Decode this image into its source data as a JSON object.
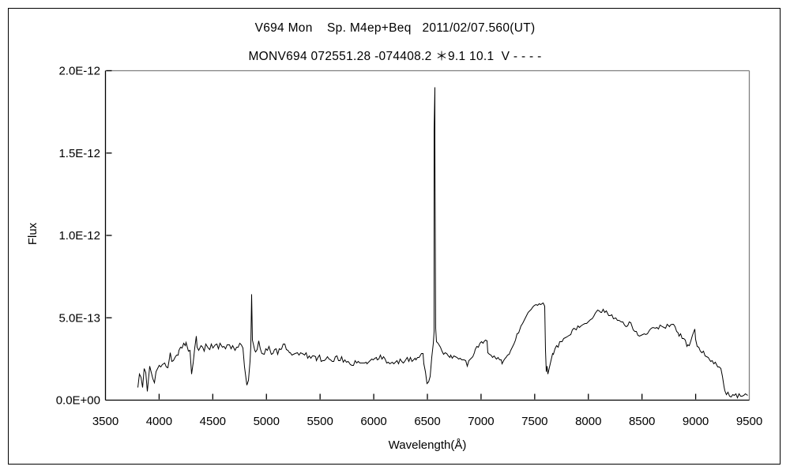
{
  "header": {
    "title_line1": "V694 Mon    Sp. M4ep+Beq   2011/02/07.560(UT)",
    "title_line2": "MONV694 072551.28 -074408.2 ＊9.1 10.1  V - - - -"
  },
  "colors": {
    "background": "#ffffff",
    "line": "#000000",
    "axis": "#000000",
    "frame_gray": "#808080",
    "text": "#000000"
  },
  "chart_data": {
    "type": "line",
    "title": "V694 Mon    Sp. M4ep+Beq   2011/02/07.560(UT)",
    "subtitle": "MONV694 072551.28 -074408.2 ＊9.1 10.1  V - - - -",
    "xlabel": "Wavelength(Å)",
    "ylabel": "Flux",
    "xlim": [
      3500,
      9500
    ],
    "ylim_flux": [
      0,
      2e-12
    ],
    "grid": false,
    "legend": "none",
    "x_ticks": [
      3500,
      4000,
      4500,
      5000,
      5500,
      6000,
      6500,
      7000,
      7500,
      8000,
      8500,
      9000,
      9500
    ],
    "x_tick_labels": [
      "3500",
      "4000",
      "4500",
      "5000",
      "5500",
      "6000",
      "6500",
      "7000",
      "7500",
      "8000",
      "8500",
      "9000",
      "9500"
    ],
    "y_tick_values_e13": [
      0,
      5,
      10,
      15,
      20
    ],
    "y_tick_labels": [
      "0.0E+00",
      "5.0E-13",
      "1.0E-12",
      "1.5E-12",
      "2.0E-12"
    ],
    "series_name": "flux-spectrum",
    "points_format": [
      "wavelength_A",
      "flux_1e-13",
      "noise_amplitude_1e-13"
    ],
    "points": [
      [
        3795,
        0.8,
        1.1
      ],
      [
        3815,
        0.8,
        1.0
      ],
      [
        3840,
        1.0,
        0.9
      ],
      [
        3860,
        1.2,
        0.8
      ],
      [
        3890,
        1.35,
        0.8
      ],
      [
        3920,
        1.5,
        0.7
      ],
      [
        3950,
        1.65,
        0.7
      ],
      [
        3985,
        1.8,
        0.6
      ],
      [
        4015,
        2.1,
        0.55
      ],
      [
        4045,
        2.2,
        0.5
      ],
      [
        4065,
        1.9,
        0.5
      ],
      [
        4090,
        2.5,
        0.5
      ],
      [
        4130,
        2.75,
        0.45
      ],
      [
        4170,
        2.95,
        0.4
      ],
      [
        4210,
        3.1,
        0.35
      ],
      [
        4250,
        3.25,
        0.3
      ],
      [
        4285,
        2.9,
        0.2
      ],
      [
        4300,
        1.7,
        0.12
      ],
      [
        4312,
        2.4,
        0.15
      ],
      [
        4330,
        3.2,
        0.2
      ],
      [
        4341,
        3.9,
        0.05
      ],
      [
        4352,
        3.25,
        0.25
      ],
      [
        4400,
        3.25,
        0.28
      ],
      [
        4450,
        3.3,
        0.28
      ],
      [
        4500,
        3.25,
        0.25
      ],
      [
        4550,
        3.3,
        0.25
      ],
      [
        4600,
        3.3,
        0.25
      ],
      [
        4650,
        3.2,
        0.25
      ],
      [
        4700,
        3.2,
        0.25
      ],
      [
        4745,
        3.35,
        0.22
      ],
      [
        4775,
        3.05,
        0.15
      ],
      [
        4795,
        2.0,
        0.1
      ],
      [
        4812,
        0.9,
        0.08
      ],
      [
        4828,
        1.3,
        0.08
      ],
      [
        4843,
        2.4,
        0.08
      ],
      [
        4854,
        3.3,
        0.06
      ],
      [
        4861,
        6.45,
        0
      ],
      [
        4869,
        3.6,
        0.08
      ],
      [
        4885,
        3.05,
        0.2
      ],
      [
        4910,
        2.9,
        0.22
      ],
      [
        4924,
        3.6,
        0.06
      ],
      [
        4940,
        2.95,
        0.22
      ],
      [
        4975,
        2.9,
        0.22
      ],
      [
        5018,
        3.35,
        0.12
      ],
      [
        5045,
        2.9,
        0.22
      ],
      [
        5100,
        2.95,
        0.22
      ],
      [
        5169,
        3.45,
        0.1
      ],
      [
        5195,
        2.9,
        0.22
      ],
      [
        5250,
        2.85,
        0.22
      ],
      [
        5300,
        2.8,
        0.22
      ],
      [
        5355,
        2.75,
        0.2
      ],
      [
        5410,
        2.65,
        0.2
      ],
      [
        5465,
        2.6,
        0.2
      ],
      [
        5520,
        2.55,
        0.18
      ],
      [
        5580,
        2.5,
        0.18
      ],
      [
        5640,
        2.55,
        0.18
      ],
      [
        5700,
        2.5,
        0.16
      ],
      [
        5755,
        2.4,
        0.14
      ],
      [
        5792,
        2.05,
        0.08
      ],
      [
        5825,
        2.3,
        0.12
      ],
      [
        5868,
        2.3,
        0.12
      ],
      [
        5895,
        2.2,
        0.1
      ],
      [
        5950,
        2.35,
        0.14
      ],
      [
        6005,
        2.5,
        0.16
      ],
      [
        6060,
        2.6,
        0.16
      ],
      [
        6105,
        2.55,
        0.16
      ],
      [
        6150,
        2.2,
        0.12
      ],
      [
        6200,
        2.3,
        0.12
      ],
      [
        6255,
        2.4,
        0.14
      ],
      [
        6310,
        2.5,
        0.16
      ],
      [
        6365,
        2.55,
        0.16
      ],
      [
        6420,
        2.65,
        0.16
      ],
      [
        6455,
        2.85,
        0.1
      ],
      [
        6478,
        1.7,
        0.08
      ],
      [
        6492,
        1.05,
        0.05
      ],
      [
        6508,
        1.1,
        0.05
      ],
      [
        6522,
        1.5,
        0.08
      ],
      [
        6538,
        2.6,
        0.08
      ],
      [
        6550,
        3.5,
        0.05
      ],
      [
        6556,
        4.2,
        0
      ],
      [
        6560,
        16.4,
        0
      ],
      [
        6563,
        19.0,
        0
      ],
      [
        6567,
        15.8,
        0
      ],
      [
        6572,
        4.4,
        0
      ],
      [
        6580,
        3.6,
        0.06
      ],
      [
        6595,
        3.45,
        0.1
      ],
      [
        6615,
        3.1,
        0.12
      ],
      [
        6650,
        2.85,
        0.14
      ],
      [
        6690,
        2.7,
        0.14
      ],
      [
        6730,
        2.6,
        0.14
      ],
      [
        6775,
        2.55,
        0.14
      ],
      [
        6820,
        2.5,
        0.14
      ],
      [
        6852,
        2.45,
        0.1
      ],
      [
        6868,
        2.05,
        0.08
      ],
      [
        6885,
        2.35,
        0.1
      ],
      [
        6905,
        2.6,
        0.12
      ],
      [
        6945,
        3.1,
        0.12
      ],
      [
        6985,
        3.4,
        0.1
      ],
      [
        7025,
        3.6,
        0.1
      ],
      [
        7052,
        3.65,
        0.06
      ],
      [
        7062,
        2.9,
        0.06
      ],
      [
        7090,
        2.75,
        0.1
      ],
      [
        7130,
        2.6,
        0.1
      ],
      [
        7168,
        2.5,
        0.1
      ],
      [
        7195,
        2.3,
        0.08
      ],
      [
        7218,
        2.5,
        0.08
      ],
      [
        7255,
        2.9,
        0.1
      ],
      [
        7300,
        3.5,
        0.1
      ],
      [
        7350,
        4.2,
        0.1
      ],
      [
        7400,
        4.9,
        0.1
      ],
      [
        7450,
        5.5,
        0.1
      ],
      [
        7495,
        5.8,
        0.08
      ],
      [
        7540,
        5.85,
        0.08
      ],
      [
        7572,
        5.95,
        0.05
      ],
      [
        7586,
        5.75,
        0.04
      ],
      [
        7596,
        3.0,
        0.05
      ],
      [
        7604,
        1.7,
        0.06
      ],
      [
        7613,
        2.1,
        0.15
      ],
      [
        7622,
        1.65,
        0.08
      ],
      [
        7638,
        2.35,
        0.12
      ],
      [
        7660,
        2.75,
        0.12
      ],
      [
        7700,
        3.2,
        0.12
      ],
      [
        7748,
        3.6,
        0.12
      ],
      [
        7798,
        3.9,
        0.12
      ],
      [
        7848,
        4.2,
        0.12
      ],
      [
        7898,
        4.45,
        0.12
      ],
      [
        7948,
        4.6,
        0.12
      ],
      [
        7998,
        4.8,
        0.12
      ],
      [
        8048,
        5.2,
        0.12
      ],
      [
        8095,
        5.5,
        0.12
      ],
      [
        8150,
        5.4,
        0.12
      ],
      [
        8200,
        5.2,
        0.12
      ],
      [
        8250,
        5.0,
        0.12
      ],
      [
        8300,
        4.75,
        0.12
      ],
      [
        8350,
        4.6,
        0.14
      ],
      [
        8395,
        4.75,
        0.1
      ],
      [
        8415,
        4.3,
        0.08
      ],
      [
        8455,
        4.0,
        0.12
      ],
      [
        8505,
        3.9,
        0.14
      ],
      [
        8550,
        4.2,
        0.16
      ],
      [
        8600,
        4.35,
        0.16
      ],
      [
        8650,
        4.4,
        0.16
      ],
      [
        8700,
        4.5,
        0.16
      ],
      [
        8750,
        4.6,
        0.16
      ],
      [
        8790,
        4.7,
        0.12
      ],
      [
        8832,
        4.1,
        0.12
      ],
      [
        8870,
        3.9,
        0.16
      ],
      [
        8912,
        3.4,
        0.16
      ],
      [
        8950,
        3.5,
        0.16
      ],
      [
        8985,
        4.3,
        0.06
      ],
      [
        9012,
        3.3,
        0.12
      ],
      [
        9055,
        3.0,
        0.12
      ],
      [
        9100,
        2.7,
        0.12
      ],
      [
        9150,
        2.4,
        0.12
      ],
      [
        9200,
        2.1,
        0.12
      ],
      [
        9232,
        1.9,
        0.08
      ],
      [
        9258,
        0.9,
        0.12
      ],
      [
        9282,
        0.45,
        0.15
      ],
      [
        9310,
        0.35,
        0.15
      ],
      [
        9355,
        0.3,
        0.15
      ],
      [
        9400,
        0.3,
        0.15
      ],
      [
        9445,
        0.28,
        0.13
      ],
      [
        9480,
        0.3,
        0.12
      ]
    ]
  }
}
